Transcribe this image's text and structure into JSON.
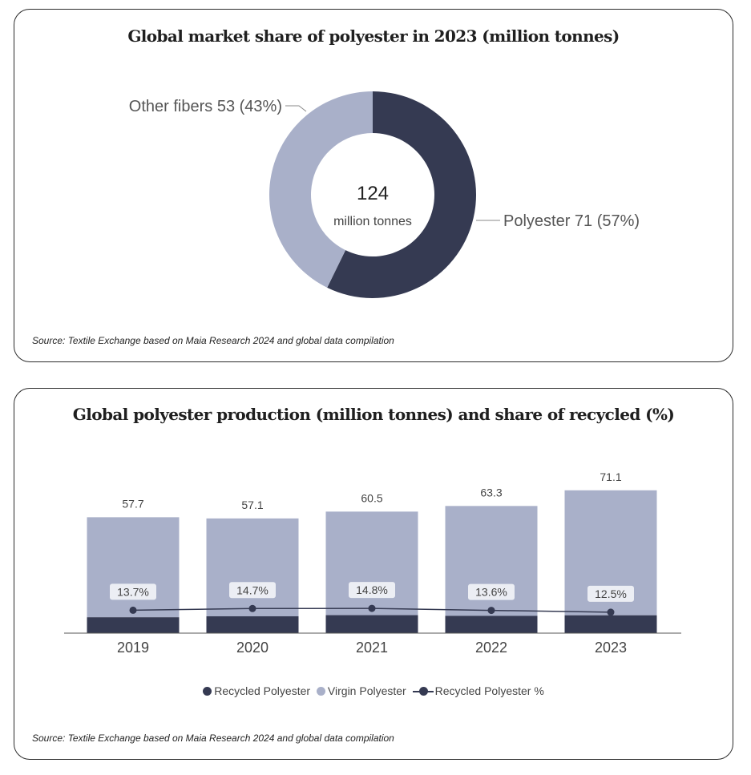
{
  "colors": {
    "recycled": "#353a52",
    "virgin": "#a9b0c9",
    "polyester": "#353a52",
    "other": "#a9b0c9"
  },
  "chart_data": [
    {
      "type": "pie",
      "title": "Global market share of polyester in 2023 (million tonnes)",
      "center_value": "124",
      "center_unit": "million tonnes",
      "slices": [
        {
          "name": "Polyester",
          "value": 71,
          "label": "Polyester 71 (57%)"
        },
        {
          "name": "Other fibers",
          "value": 53,
          "label": "Other fibers 53 (43%)"
        }
      ],
      "source": "Source: Textile Exchange based on Maia Research 2024 and global data compilation"
    },
    {
      "type": "bar",
      "title": "Global polyester production (million tonnes) and share of recycled (%)",
      "categories": [
        "2019",
        "2020",
        "2021",
        "2022",
        "2023"
      ],
      "totals": [
        57.7,
        57.1,
        60.5,
        63.3,
        71.1
      ],
      "total_labels": [
        "57.7",
        "57.1",
        "60.5",
        "63.3",
        "71.1"
      ],
      "recycled_pct": [
        13.7,
        14.7,
        14.8,
        13.6,
        12.5
      ],
      "recycled_pct_labels": [
        "13.7%",
        "14.7%",
        "14.8%",
        "13.6%",
        "12.5%"
      ],
      "series": [
        {
          "name": "Recycled Polyester"
        },
        {
          "name": "Virgin Polyester"
        },
        {
          "name": "Recycled Polyester %"
        }
      ],
      "ylim": [
        0,
        75
      ],
      "pct_ylim": [
        0,
        90
      ],
      "legend_position": "bottom",
      "source": "Source: Textile Exchange based on Maia Research 2024 and global data compilation"
    }
  ]
}
